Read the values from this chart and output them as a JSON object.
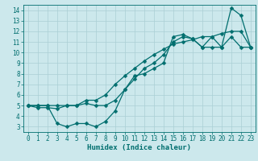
{
  "xlabel": "Humidex (Indice chaleur)",
  "xlim": [
    -0.5,
    23.5
  ],
  "ylim": [
    2.5,
    14.5
  ],
  "xticks": [
    0,
    1,
    2,
    3,
    4,
    5,
    6,
    7,
    8,
    9,
    10,
    11,
    12,
    13,
    14,
    15,
    16,
    17,
    18,
    19,
    20,
    21,
    22,
    23
  ],
  "yticks": [
    3,
    4,
    5,
    6,
    7,
    8,
    9,
    10,
    11,
    12,
    13,
    14
  ],
  "bg_color": "#cce8ec",
  "grid_color": "#aacfd4",
  "line_color": "#006e6e",
  "line1_x": [
    0,
    1,
    2,
    3,
    4,
    5,
    6,
    7,
    8,
    9,
    10,
    11,
    12,
    13,
    14,
    15,
    16,
    17,
    18,
    19,
    20,
    21,
    22,
    23
  ],
  "line1_y": [
    5,
    5,
    5,
    3.3,
    3.0,
    3.3,
    3.3,
    3.0,
    3.5,
    4.5,
    6.5,
    7.8,
    8.0,
    8.5,
    9.0,
    11.5,
    11.7,
    11.3,
    10.5,
    11.5,
    10.5,
    14.2,
    13.5,
    10.5
  ],
  "line2_x": [
    0,
    1,
    2,
    3,
    4,
    5,
    6,
    7,
    8,
    9,
    10,
    11,
    12,
    13,
    14,
    15,
    16,
    17,
    18,
    19,
    20,
    21,
    22,
    23
  ],
  "line2_y": [
    5,
    4.8,
    4.8,
    4.7,
    5.0,
    5.0,
    5.2,
    5.0,
    5.0,
    5.5,
    6.5,
    7.5,
    8.5,
    9.0,
    9.8,
    11.0,
    11.5,
    11.3,
    10.5,
    10.5,
    10.5,
    11.5,
    10.5,
    10.5
  ],
  "line3_x": [
    0,
    1,
    2,
    3,
    4,
    5,
    6,
    7,
    8,
    9,
    10,
    11,
    12,
    13,
    14,
    15,
    16,
    17,
    18,
    19,
    20,
    21,
    22,
    23
  ],
  "line3_y": [
    5,
    5,
    5,
    5,
    5,
    5,
    5.5,
    5.5,
    6.0,
    7.0,
    7.8,
    8.5,
    9.2,
    9.8,
    10.3,
    10.8,
    11.0,
    11.2,
    11.5,
    11.5,
    11.8,
    12.0,
    12.0,
    10.5
  ],
  "marker": "D",
  "marker_size": 2.5,
  "linewidth": 0.9,
  "tick_fontsize": 5.5,
  "xlabel_fontsize": 6.5
}
